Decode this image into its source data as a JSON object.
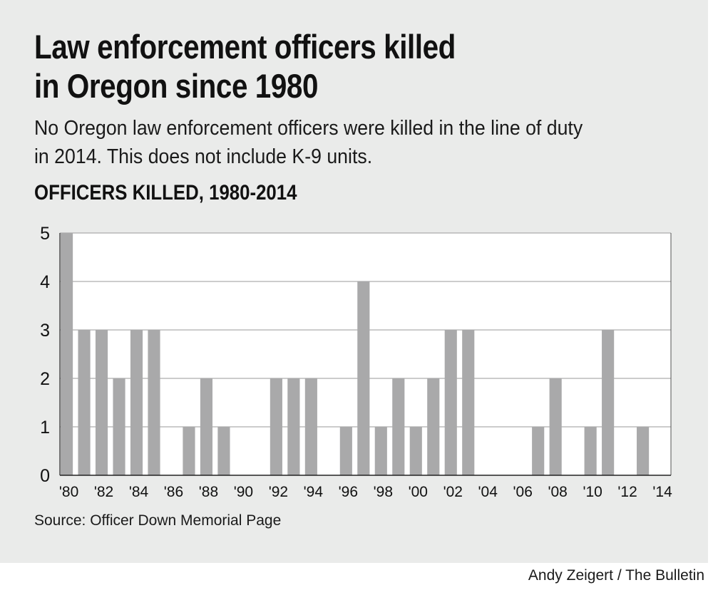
{
  "header": {
    "title_line1": "Law enforcement officers killed",
    "title_line2": "in Oregon since 1980",
    "subtitle_line1": "No Oregon law enforcement officers were killed in the line of duty",
    "subtitle_line2": "in 2014. This does not include K-9 units."
  },
  "footer": {
    "source": "Source: Officer Down Memorial Page",
    "credit": "Andy Zeigert / The Bulletin"
  },
  "colors": {
    "panel": "#eaebea",
    "plot_background": "#ffffff",
    "bar": "#a9a9aa",
    "gridline": "#999999"
  },
  "chart_data": {
    "type": "bar",
    "title": "OFFICERS KILLED, 1980-2014",
    "xlabel": "",
    "ylabel": "",
    "x": [
      1980,
      1981,
      1982,
      1983,
      1984,
      1985,
      1986,
      1987,
      1988,
      1989,
      1990,
      1991,
      1992,
      1993,
      1994,
      1995,
      1996,
      1997,
      1998,
      1999,
      2000,
      2001,
      2002,
      2003,
      2004,
      2005,
      2006,
      2007,
      2008,
      2009,
      2010,
      2011,
      2012,
      2013,
      2014
    ],
    "values": [
      5,
      3,
      3,
      2,
      3,
      3,
      0,
      1,
      2,
      1,
      0,
      0,
      2,
      2,
      2,
      0,
      1,
      4,
      1,
      2,
      1,
      2,
      3,
      3,
      0,
      0,
      0,
      1,
      2,
      0,
      1,
      3,
      0,
      1,
      0
    ],
    "x_tick_labels": [
      "'80",
      "'82",
      "'84",
      "'86",
      "'88",
      "'90",
      "'92",
      "'94",
      "'96",
      "'98",
      "'00",
      "'02",
      "'04",
      "'06",
      "'08",
      "'10",
      "'12",
      "'14"
    ],
    "y_ticks": [
      0,
      1,
      2,
      3,
      4,
      5
    ],
    "ylim": [
      0,
      5
    ],
    "grid": true,
    "legend": "none"
  }
}
